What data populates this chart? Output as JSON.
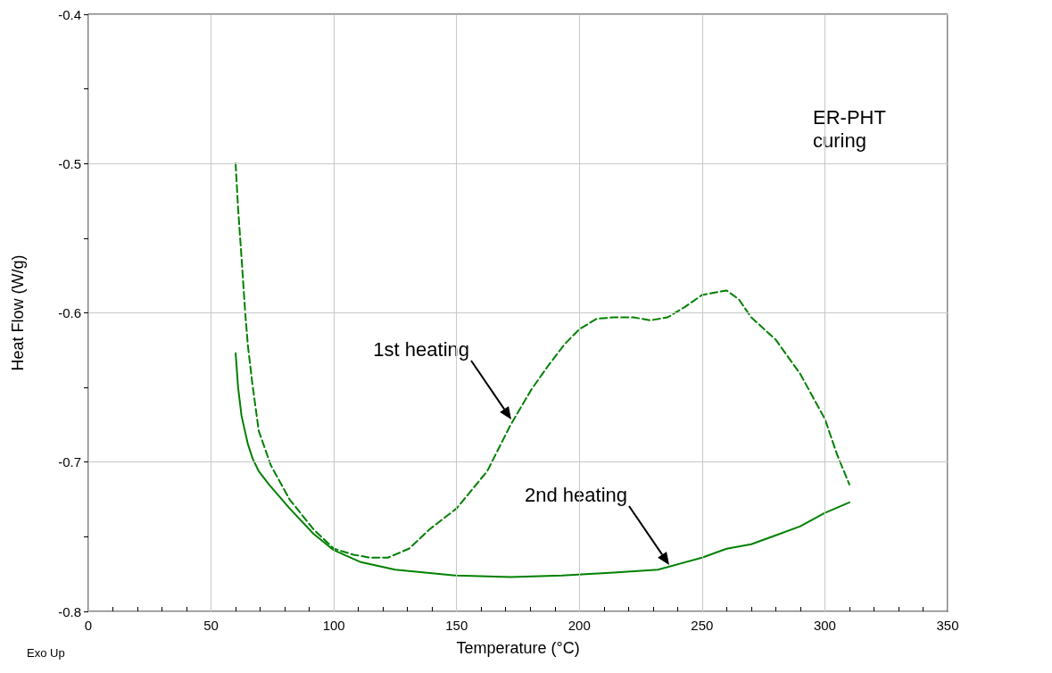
{
  "chart_data": {
    "type": "line",
    "xlabel": "Temperature (°C)",
    "ylabel": "Heat Flow (W/g)",
    "xlim": [
      0,
      350
    ],
    "ylim": [
      -0.8,
      -0.4
    ],
    "xticks": [
      0,
      {
        "value": 10,
        "label": null
      },
      {
        "value": 20,
        "label": null
      },
      {
        "value": 30,
        "label": null
      },
      {
        "value": 40,
        "label": null
      },
      50,
      {
        "value": 60,
        "label": null
      },
      {
        "value": 70,
        "label": null
      },
      {
        "value": 80,
        "label": null
      },
      {
        "value": 90,
        "label": null
      },
      100,
      {
        "value": 110,
        "label": null
      },
      {
        "value": 120,
        "label": null
      },
      {
        "value": 130,
        "label": null
      },
      {
        "value": 140,
        "label": null
      },
      150,
      {
        "value": 160,
        "label": null
      },
      {
        "value": 170,
        "label": null
      },
      {
        "value": 180,
        "label": null
      },
      {
        "value": 190,
        "label": null
      },
      200,
      {
        "value": 210,
        "label": null
      },
      {
        "value": 220,
        "label": null
      },
      {
        "value": 230,
        "label": null
      },
      {
        "value": 240,
        "label": null
      },
      250,
      {
        "value": 260,
        "label": null
      },
      {
        "value": 270,
        "label": null
      },
      {
        "value": 280,
        "label": null
      },
      {
        "value": 290,
        "label": null
      },
      300,
      {
        "value": 310,
        "label": null
      },
      {
        "value": 320,
        "label": null
      },
      {
        "value": 330,
        "label": null
      },
      {
        "value": 340,
        "label": null
      },
      350
    ],
    "yticks": [
      -0.8,
      {
        "value": -0.75,
        "label": null
      },
      -0.7,
      {
        "value": -0.65,
        "label": null
      },
      -0.6,
      {
        "value": -0.55,
        "label": null
      },
      -0.5,
      {
        "value": -0.45,
        "label": null
      },
      -0.4
    ],
    "grid": true,
    "marker": "none",
    "series": [
      {
        "color": "#008000",
        "line_style": "dashed",
        "x": [
          60,
          61,
          62.4,
          63.9,
          65,
          66.7,
          69.4,
          74.3,
          82,
          91.7,
          100,
          108,
          115,
          122,
          130.6,
          139,
          150,
          162.5,
          172,
          180.6,
          187.5,
          194,
          200,
          207,
          214,
          222,
          229,
          236,
          243,
          250,
          260,
          265,
          270,
          280,
          290,
          300,
          305,
          310
        ],
        "values": [
          -0.5,
          -0.53,
          -0.563,
          -0.6,
          -0.622,
          -0.646,
          -0.679,
          -0.702,
          -0.725,
          -0.745,
          -0.758,
          -0.762,
          -0.764,
          -0.764,
          -0.758,
          -0.745,
          -0.731,
          -0.706,
          -0.675,
          -0.651,
          -0.635,
          -0.621,
          -0.611,
          -0.604,
          -0.603,
          -0.603,
          -0.605,
          -0.603,
          -0.596,
          -0.588,
          -0.585,
          -0.591,
          -0.603,
          -0.618,
          -0.641,
          -0.671,
          -0.695,
          -0.715
        ]
      },
      {
        "color": "#008000",
        "line_style": "solid",
        "x": [
          60,
          61,
          62.4,
          65,
          67,
          69.4,
          73.6,
          82,
          91.7,
          100,
          111,
          125,
          150,
          172,
          193,
          214,
          232,
          250,
          260,
          270,
          280,
          290,
          300,
          310
        ],
        "values": [
          -0.627,
          -0.65,
          -0.669,
          -0.688,
          -0.698,
          -0.706,
          -0.715,
          -0.731,
          -0.748,
          -0.759,
          -0.767,
          -0.772,
          -0.776,
          -0.777,
          -0.776,
          -0.774,
          -0.772,
          -0.764,
          -0.758,
          -0.755,
          -0.749,
          -0.743,
          -0.734,
          -0.727
        ]
      }
    ],
    "annotations": [
      "1st heating",
      "2nd heating",
      "ER-PHT curing",
      "Exo Up"
    ]
  }
}
